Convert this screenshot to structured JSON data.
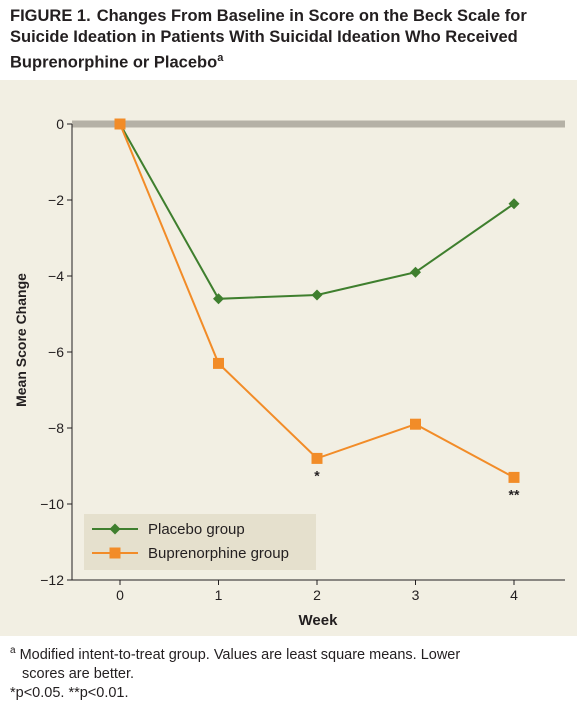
{
  "figure": {
    "label": "FIGURE 1.",
    "title": "Changes From Baseline in Score on the Beck Scale for Suicide Ideation in Patients With Suicidal Ideation Who Received Buprenorphine or Placebo",
    "title_marker": "a"
  },
  "chart_data": {
    "type": "line",
    "xlabel": "Week",
    "ylabel": "Mean Score Change",
    "x": [
      0,
      1,
      2,
      3,
      4
    ],
    "x_ticks": [
      "0",
      "1",
      "2",
      "3",
      "4"
    ],
    "ylim": [
      -12,
      0
    ],
    "y_ticks": [
      0,
      -2,
      -4,
      -6,
      -8,
      -10,
      -12
    ],
    "y_tick_labels": [
      "0",
      "−2",
      "−4",
      "−6",
      "−8",
      "−10",
      "−12"
    ],
    "grid": false,
    "zero_line": true,
    "legend_position": "bottom-left",
    "series": [
      {
        "name": "Placebo group",
        "marker": "diamond",
        "color": "#3f7f2e",
        "values": [
          0,
          -4.6,
          -4.5,
          -3.9,
          -2.1
        ]
      },
      {
        "name": "Buprenorphine group",
        "marker": "square",
        "color": "#f28c28",
        "values": [
          0,
          -6.3,
          -8.8,
          -7.9,
          -9.3
        ]
      }
    ],
    "annotations": [
      {
        "x": 2,
        "y": -8.8,
        "text": "*"
      },
      {
        "x": 4,
        "y": -9.3,
        "text": "**"
      }
    ]
  },
  "colors": {
    "panel_background": "#f2efe3",
    "legend_background": "#e5e0cd",
    "zero_line": "#b5b1a6",
    "axis": "#231f20"
  },
  "footnotes": {
    "marker": "a",
    "line1": "Modified intent-to-treat group. Values are least square means. Lower",
    "line2": "scores are better.",
    "line3": "*p<0.05. **p<0.01."
  }
}
